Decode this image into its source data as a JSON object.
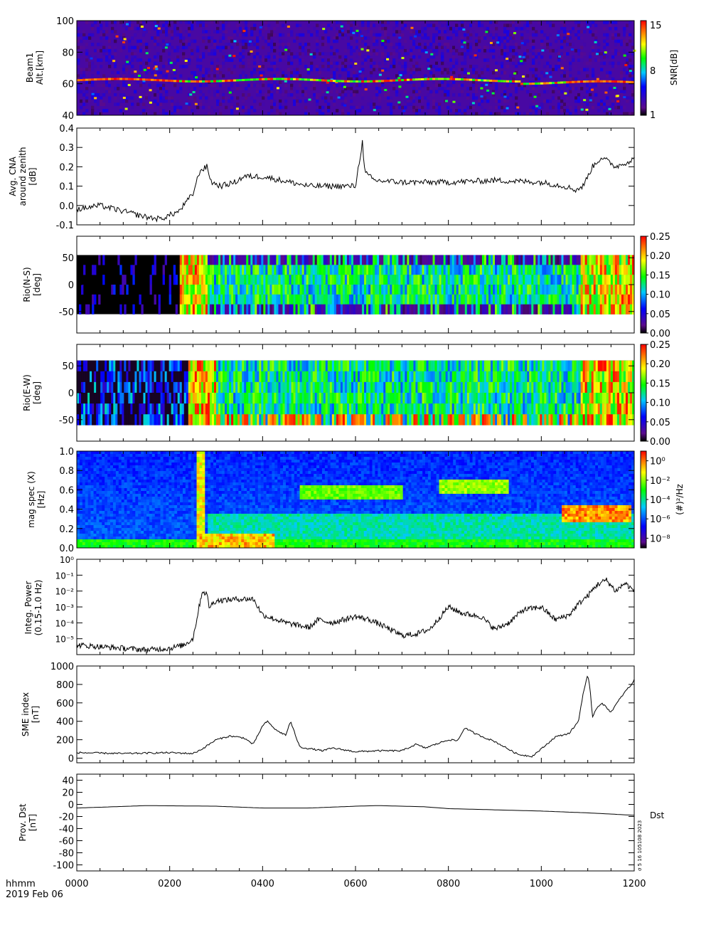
{
  "footer": {
    "time_format_label": "hhmm",
    "date_label": "2019 Feb 06",
    "x_ticks": [
      "0000",
      "0200",
      "0400",
      "0600",
      "0800",
      "1000",
      "1200"
    ]
  },
  "chart_data": [
    {
      "type": "heatmap",
      "ylabel": [
        "Beam1",
        "Alt.[km]"
      ],
      "ylim": [
        40,
        100
      ],
      "y_ticks": [
        "40",
        "60",
        "80",
        "100"
      ],
      "y_tick_values": [
        40,
        60,
        80,
        100
      ],
      "colorbar": {
        "label": "SNR[dB]",
        "ticks": [
          "1",
          "8",
          "15"
        ],
        "range": [
          1,
          15
        ]
      },
      "features": {
        "persistent_layer_altitude_km": 62,
        "background_snr_db": 2
      }
    },
    {
      "type": "line",
      "ylabel": [
        "Avg. CNA",
        "around zenith",
        "[dB]"
      ],
      "ylim": [
        -0.1,
        0.4
      ],
      "y_ticks": [
        "-0.1",
        "0.0",
        "0.1",
        "0.2",
        "0.3",
        "0.4"
      ],
      "y_tick_values": [
        -0.1,
        0.0,
        0.1,
        0.2,
        0.3,
        0.4
      ],
      "x_hours": [
        0,
        0.5,
        1.0,
        1.5,
        1.8,
        2.2,
        2.5,
        2.65,
        2.8,
        2.9,
        3.1,
        3.4,
        3.6,
        4.0,
        5.0,
        6.0,
        6.15,
        6.2,
        6.4,
        7.0,
        8.0,
        9.0,
        10.0,
        10.5,
        10.75,
        10.9,
        11.1,
        11.3,
        11.6,
        12.0
      ],
      "values": [
        -0.02,
        0.0,
        -0.03,
        -0.06,
        -0.07,
        -0.03,
        0.06,
        0.18,
        0.2,
        0.12,
        0.1,
        0.12,
        0.15,
        0.15,
        0.1,
        0.1,
        0.33,
        0.17,
        0.13,
        0.12,
        0.12,
        0.13,
        0.12,
        0.1,
        0.08,
        0.1,
        0.2,
        0.25,
        0.2,
        0.24
      ]
    },
    {
      "type": "heatmap",
      "ylabel": [
        "Rio(N-S)",
        "[deg]"
      ],
      "ylim": [
        -90,
        90
      ],
      "y_ticks": [
        "-50",
        "0",
        "50"
      ],
      "y_tick_values": [
        -50,
        0,
        50
      ],
      "data_extent": [
        -55,
        55
      ],
      "colorbar": {
        "ticks": [
          "0.00",
          "0.05",
          "0.10",
          "0.15",
          "0.20",
          "0.25"
        ],
        "range": [
          0,
          0.25
        ]
      }
    },
    {
      "type": "heatmap",
      "ylabel": [
        "Rio(E-W)",
        "[deg]"
      ],
      "ylim": [
        -90,
        90
      ],
      "y_ticks": [
        "-50",
        "0",
        "50"
      ],
      "y_tick_values": [
        -50,
        0,
        50
      ],
      "data_extent": [
        -60,
        60
      ],
      "colorbar": {
        "ticks": [
          "0.00",
          "0.05",
          "0.10",
          "0.15",
          "0.20",
          "0.25"
        ],
        "range": [
          0,
          0.25
        ]
      }
    },
    {
      "type": "heatmap",
      "ylabel": [
        "mag spec (X)",
        "[Hz]"
      ],
      "ylim": [
        0,
        1.0
      ],
      "y_ticks": [
        "0.0",
        "0.2",
        "0.4",
        "0.6",
        "0.8",
        "1.0"
      ],
      "y_tick_values": [
        0,
        0.2,
        0.4,
        0.6,
        0.8,
        1.0
      ],
      "colorbar": {
        "label": "(#)²/Hz",
        "ticks": [
          "10⁻⁸",
          "10⁻⁶",
          "10⁻⁴",
          "10⁻²",
          "10⁰"
        ],
        "log_range": [
          -9,
          1
        ]
      }
    },
    {
      "type": "line",
      "log_scale": true,
      "ylabel": [
        "Integ. Power",
        "(0.15-1.0 Hz)"
      ],
      "ylim_log10": [
        -6,
        0
      ],
      "y_ticks": [
        "10⁻⁵",
        "10⁻⁴",
        "10⁻³",
        "10⁻²",
        "10⁻¹",
        "10⁰"
      ],
      "y_tick_values": [
        -5,
        -4,
        -3,
        -2,
        -1,
        0
      ],
      "x_hours": [
        0,
        0.5,
        1.0,
        1.5,
        2.0,
        2.3,
        2.5,
        2.6,
        2.7,
        2.8,
        2.85,
        3.0,
        3.5,
        3.8,
        4.0,
        4.5,
        5.0,
        5.2,
        5.5,
        6.0,
        6.3,
        6.6,
        7.0,
        7.3,
        7.6,
        8.0,
        8.3,
        8.7,
        9.0,
        9.3,
        9.6,
        10.0,
        10.3,
        10.6,
        10.8,
        11.0,
        11.2,
        11.4,
        11.6,
        11.8,
        12.0
      ],
      "values_log10": [
        -5.4,
        -5.5,
        -5.6,
        -5.7,
        -5.6,
        -5.4,
        -5.0,
        -3.5,
        -2.0,
        -2.2,
        -3.0,
        -2.6,
        -2.5,
        -2.5,
        -3.5,
        -4.0,
        -4.3,
        -3.8,
        -4.0,
        -3.6,
        -3.8,
        -4.2,
        -4.8,
        -4.7,
        -4.4,
        -3.0,
        -3.4,
        -3.6,
        -4.4,
        -4.0,
        -3.2,
        -3.0,
        -3.8,
        -3.5,
        -2.8,
        -2.3,
        -1.6,
        -1.3,
        -2.0,
        -1.5,
        -2.0
      ]
    },
    {
      "type": "line",
      "ylabel": [
        "SME index",
        "[nT]"
      ],
      "ylim": [
        -50,
        1000
      ],
      "y_ticks": [
        "0",
        "200",
        "400",
        "600",
        "800",
        "1000"
      ],
      "y_tick_values": [
        0,
        200,
        400,
        600,
        800,
        1000
      ],
      "x_hours": [
        0,
        1.0,
        2.0,
        2.5,
        2.7,
        3.0,
        3.3,
        3.6,
        3.8,
        4.0,
        4.1,
        4.3,
        4.5,
        4.6,
        4.8,
        5.3,
        5.5,
        6.0,
        6.5,
        7.0,
        7.3,
        7.5,
        8.0,
        8.2,
        8.35,
        8.6,
        9.0,
        9.5,
        9.8,
        10.0,
        10.3,
        10.6,
        10.8,
        10.9,
        11.0,
        11.05,
        11.1,
        11.2,
        11.3,
        11.5,
        11.7,
        11.85,
        11.95,
        12.0
      ],
      "values": [
        60,
        50,
        60,
        50,
        100,
        200,
        240,
        220,
        150,
        350,
        400,
        300,
        250,
        400,
        120,
        80,
        110,
        70,
        80,
        80,
        150,
        110,
        200,
        190,
        330,
        260,
        180,
        40,
        20,
        100,
        230,
        270,
        400,
        700,
        900,
        750,
        450,
        550,
        600,
        500,
        650,
        750,
        800,
        850
      ]
    },
    {
      "type": "line",
      "ylabel": [
        "Prov. Dst",
        "[nT]"
      ],
      "ylim": [
        -110,
        50
      ],
      "y_ticks": [
        "-100",
        "-80",
        "-60",
        "-40",
        "-20",
        "0",
        "20",
        "40"
      ],
      "y_tick_values": [
        -100,
        -80,
        -60,
        -40,
        -20,
        0,
        20,
        40
      ],
      "legend": [
        "Dst"
      ],
      "side_caption": "σ 5 16 105108 2023",
      "x_hours": [
        0,
        1.5,
        3.0,
        4.0,
        5.0,
        6.0,
        6.5,
        7.5,
        8.0,
        9.0,
        10.0,
        11.0,
        12.0
      ],
      "values": [
        -6,
        -2,
        -3,
        -6,
        -6,
        -3,
        -2,
        -4,
        -7,
        -9,
        -11,
        -14,
        -18
      ]
    }
  ]
}
